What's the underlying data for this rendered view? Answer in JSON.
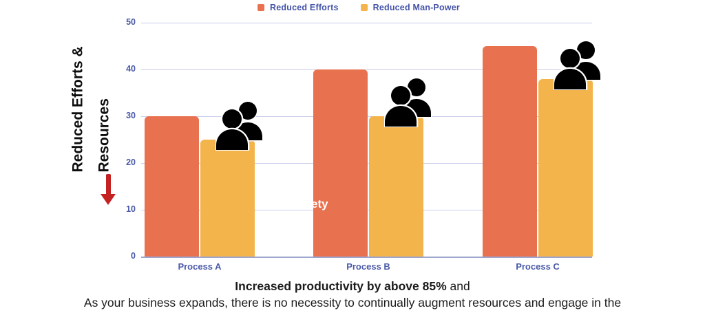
{
  "chart_data": {
    "type": "bar",
    "categories": [
      "Process A",
      "Process B",
      "Process C"
    ],
    "series": [
      {
        "name": "Reduced Efforts",
        "color": "#E8714F",
        "values": [
          30,
          40,
          45
        ]
      },
      {
        "name": "Reduced Man-Power",
        "color": "#F4B44C",
        "values": [
          25,
          30,
          38
        ]
      }
    ],
    "ylabel": "Reduced Efforts & Resources",
    "xlabel": "",
    "ylim": [
      0,
      50
    ],
    "yticks": [
      0,
      10,
      20,
      30,
      40,
      50
    ],
    "grid": true,
    "legend_position": "top-center"
  },
  "y_axis_title": {
    "line1": "Reduced Efforts &",
    "line2": "Resources"
  },
  "overlay_text": "ety",
  "caption": {
    "line1_bold": "Increased productivity by above 85%",
    "line1_regular": " and",
    "line2": "As your business expands, there is no necessity to continually augment resources and engage in the"
  },
  "colors": {
    "series_efforts": "#E8714F",
    "series_manpower": "#F4B44C",
    "axis_text": "#4A5AA8",
    "gridline": "#C9CDE8",
    "baseline": "#9FA6CE",
    "arrow_red": "#C42121",
    "caption_text": "#1B1B1B",
    "icon_black": "#000000"
  }
}
